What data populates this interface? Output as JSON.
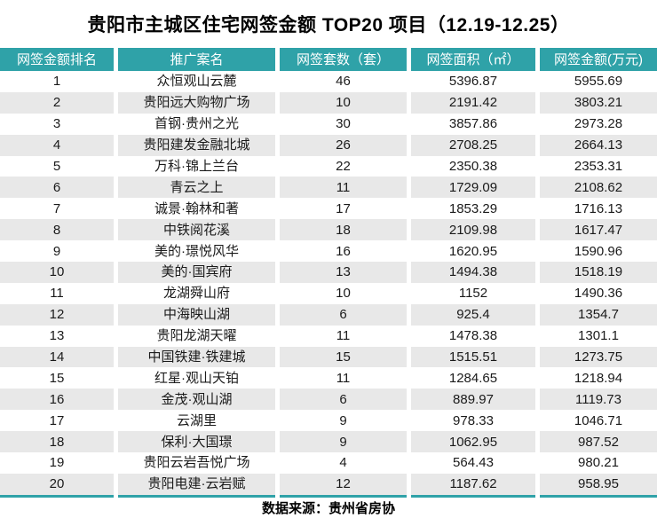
{
  "title": "贵阳市主城区住宅网签金额 TOP20 项目（12.19-12.25）",
  "colors": {
    "header_bg": "#2FA2A8",
    "header_text": "#FFFFFF",
    "row_alt_bg": "#E8E8E8",
    "accent_line": "#2FA2A8",
    "body_text": "#1A1A1A"
  },
  "footer": {
    "source": "数据来源：贵州省房协"
  },
  "chart_data": {
    "type": "table",
    "title": "贵阳市主城区住宅网签金额 TOP20 项目（12.19-12.25）",
    "source": "数据来源：贵州省房协",
    "columns": [
      "网签金额排名",
      "推广案名",
      "网签套数（套）",
      "网签面积（㎡）",
      "网签金额(万元)"
    ],
    "rows": [
      [
        "1",
        "众恒观山云麓",
        "46",
        "5396.87",
        "5955.69"
      ],
      [
        "2",
        "贵阳远大购物广场",
        "10",
        "2191.42",
        "3803.21"
      ],
      [
        "3",
        "首钢·贵州之光",
        "30",
        "3857.86",
        "2973.28"
      ],
      [
        "4",
        "贵阳建发金融北城",
        "26",
        "2708.25",
        "2664.13"
      ],
      [
        "5",
        "万科·锦上兰台",
        "22",
        "2350.38",
        "2353.31"
      ],
      [
        "6",
        "青云之上",
        "11",
        "1729.09",
        "2108.62"
      ],
      [
        "7",
        "诚景·翰林和著",
        "17",
        "1853.29",
        "1716.13"
      ],
      [
        "8",
        "中铁阅花溪",
        "18",
        "2109.98",
        "1617.47"
      ],
      [
        "9",
        "美的·璟悦风华",
        "16",
        "1620.95",
        "1590.96"
      ],
      [
        "10",
        "美的·国宾府",
        "13",
        "1494.38",
        "1518.19"
      ],
      [
        "11",
        "龙湖舜山府",
        "10",
        "1152",
        "1490.36"
      ],
      [
        "12",
        "中海映山湖",
        "6",
        "925.4",
        "1354.7"
      ],
      [
        "13",
        "贵阳龙湖天曜",
        "11",
        "1478.38",
        "1301.1"
      ],
      [
        "14",
        "中国铁建·铁建城",
        "15",
        "1515.51",
        "1273.75"
      ],
      [
        "15",
        "红星·观山天铂",
        "11",
        "1284.65",
        "1218.94"
      ],
      [
        "16",
        "金茂·观山湖",
        "6",
        "889.97",
        "1119.73"
      ],
      [
        "17",
        "云湖里",
        "9",
        "978.33",
        "1046.71"
      ],
      [
        "18",
        "保利·大国璟",
        "9",
        "1062.95",
        "987.52"
      ],
      [
        "19",
        "贵阳云岩吾悦广场",
        "4",
        "564.43",
        "980.21"
      ],
      [
        "20",
        "贵阳电建·云岩赋",
        "12",
        "1187.62",
        "958.95"
      ]
    ]
  }
}
